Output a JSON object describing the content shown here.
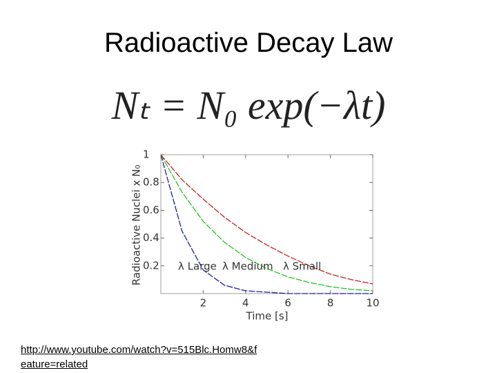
{
  "slide_title": "Radioactive Decay Law",
  "equation": "Nₜ = N₀ exp(−λt)",
  "link": "http://www.youtube.com/watch?v=515Blc.Homw8&feature=related",
  "chart_data": {
    "type": "line",
    "x_label": "Time [s]",
    "y_label": "Radioactive Nuclei x N₀",
    "x": [
      0,
      1,
      2,
      3,
      4,
      5,
      6,
      7,
      8,
      9,
      10
    ],
    "series": [
      {
        "name": "λ Large",
        "color": "#1c1ca8",
        "values": [
          1,
          0.45,
          0.17,
          0.06,
          0.02,
          0.01,
          0,
          0,
          0,
          0,
          0
        ]
      },
      {
        "name": "λ Medium",
        "color": "#22c422",
        "values": [
          1,
          0.73,
          0.52,
          0.37,
          0.26,
          0.18,
          0.12,
          0.08,
          0.05,
          0.03,
          0.02
        ]
      },
      {
        "name": "λ Small",
        "color": "#c42222",
        "values": [
          1,
          0.82,
          0.68,
          0.55,
          0.44,
          0.35,
          0.27,
          0.2,
          0.14,
          0.1,
          0.07
        ]
      }
    ],
    "xlim": [
      0,
      10
    ],
    "ylim": [
      0,
      1
    ],
    "xticks": [
      2,
      4,
      6,
      8,
      10
    ],
    "yticks": [
      0.2,
      0.4,
      0.6,
      0.8,
      1
    ]
  }
}
